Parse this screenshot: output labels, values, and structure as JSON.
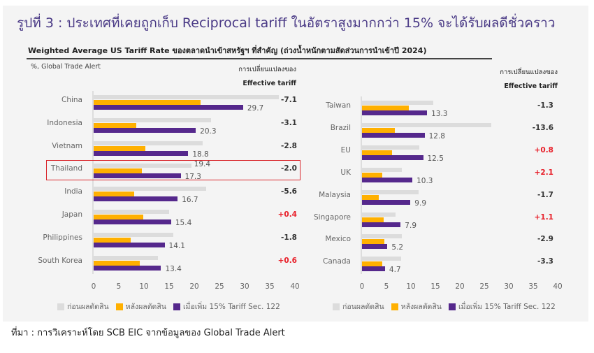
{
  "title": "รูปที่ 3 : ประเทศที่เคยถูกเก็บ Reciprocal tariff ในอัตราสูงมากกว่า 15% จะได้รับผลดีชั่วคราว",
  "subtitle": "Weighted Average US Tariff Rate ของตลาดนำเข้าสหรัฐฯ ที่สำคัญ (ถ่วงน้ำหนักตามสัดส่วนการนำเข้าปี 2024)",
  "unit_label": "%, Global Trade Alert",
  "change_header_line1": "การเปลี่ยนแปลงของ",
  "change_header_line2": "Effective tariff",
  "source": "ที่มา : การวิเคราะห์โดย SCB EIC จากข้อมูลของ Global Trade Alert",
  "colors": {
    "before": "#dcdcdc",
    "after": "#ffb000",
    "sec122": "#55288c",
    "negative": "#333333",
    "positive": "#e8202a",
    "title": "#4a3a86"
  },
  "legend": [
    "ก่อนผลตัดสิน",
    "หลังผลตัดสิน",
    "เมื่อเพิ่ม 15% Tariff Sec. 122"
  ],
  "chart_data": [
    {
      "type": "bar",
      "orientation": "horizontal",
      "xlim": [
        0,
        40
      ],
      "ticks": [
        "0",
        "5",
        "10",
        "15",
        "20",
        "25",
        "30",
        "35",
        "40"
      ],
      "highlight": "Thailand",
      "categories": [
        "China",
        "Indonesia",
        "Vietnam",
        "Thailand",
        "India",
        "Japan",
        "Philippines",
        "South Korea"
      ],
      "series": [
        {
          "name": "ก่อนผลตัดสิน",
          "values": [
            36.8,
            23.4,
            21.6,
            19.4,
            22.3,
            15.0,
            15.9,
            12.8
          ]
        },
        {
          "name": "หลังผลตัดสิน",
          "values": [
            21.2,
            8.5,
            10.3,
            9.6,
            8.1,
            9.9,
            7.4,
            9.2
          ]
        },
        {
          "name": "เมื่อเพิ่ม 15% Tariff Sec. 122",
          "values": [
            29.7,
            20.3,
            18.8,
            17.3,
            16.7,
            15.4,
            14.1,
            13.4
          ]
        }
      ],
      "data_labels": [
        "29.7",
        "20.3",
        "18.8",
        "17.3",
        "16.7",
        "15.4",
        "14.1",
        "13.4"
      ],
      "before_label_shown": {
        "Thailand": "19.4"
      },
      "change": [
        "-7.1",
        "-3.1",
        "-2.8",
        "-2.0",
        "-5.6",
        "+0.4",
        "-1.8",
        "+0.6"
      ]
    },
    {
      "type": "bar",
      "orientation": "horizontal",
      "xlim": [
        0,
        40
      ],
      "ticks": [
        "0",
        "5",
        "10",
        "15",
        "20",
        "25",
        "30",
        "35",
        "40"
      ],
      "categories": [
        "Taiwan",
        "Brazil",
        "EU",
        "UK",
        "Malaysia",
        "Singapore",
        "Mexico",
        "Canada"
      ],
      "series": [
        {
          "name": "ก่อนผลตัดสิน",
          "values": [
            14.6,
            26.4,
            11.7,
            8.2,
            11.6,
            6.8,
            8.1,
            8.0
          ]
        },
        {
          "name": "หลังผลตัดสิน",
          "values": [
            9.6,
            6.7,
            6.2,
            4.1,
            3.4,
            4.4,
            4.5,
            4.1
          ]
        },
        {
          "name": "เมื่อเพิ่ม 15% Tariff Sec. 122",
          "values": [
            13.3,
            12.8,
            12.5,
            10.3,
            9.9,
            7.9,
            5.2,
            4.7
          ]
        }
      ],
      "data_labels": [
        "13.3",
        "12.8",
        "12.5",
        "10.3",
        "9.9",
        "7.9",
        "5.2",
        "4.7"
      ],
      "change": [
        "-1.3",
        "-13.6",
        "+0.8",
        "+2.1",
        "-1.7",
        "+1.1",
        "-2.9",
        "-3.3"
      ]
    }
  ]
}
